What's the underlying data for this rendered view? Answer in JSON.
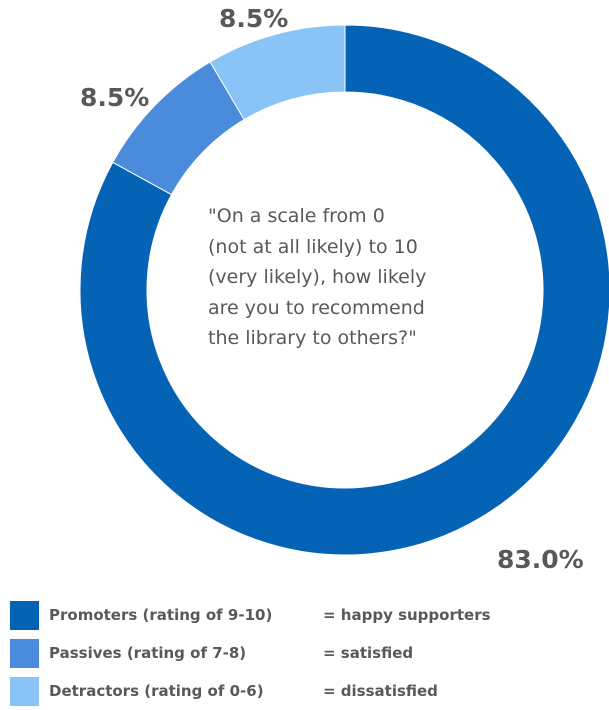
{
  "chart_data": {
    "type": "pie",
    "categories": [
      "Promoters (rating of 9-10)",
      "Passives (rating of 7-8)",
      "Detractors (rating of 0-6)"
    ],
    "values": [
      83.0,
      8.5,
      8.5
    ],
    "data_labels": [
      "83.0%",
      "8.5%",
      "8.5%"
    ],
    "colors": [
      "#0563B5",
      "#4A8BDB",
      "#8AC3F5"
    ],
    "donut": true,
    "center_text": [
      "\"On a scale from 0",
      "(not at all likely) to 10",
      "(very likely), how likely",
      "are you to recommend",
      "the library to others?\""
    ],
    "legend": {
      "placement": "bottom-left",
      "items": [
        {
          "label": "Promoters (rating of 9-10)",
          "description": "= happy supporters",
          "color": "#0563B5"
        },
        {
          "label": "Passives (rating of 7-8)",
          "description": "= satisfied",
          "color": "#4A8BDB"
        },
        {
          "label": "Detractors (rating of 0-6)",
          "description": "= dissatisfied",
          "color": "#8AC3F5"
        }
      ]
    }
  }
}
